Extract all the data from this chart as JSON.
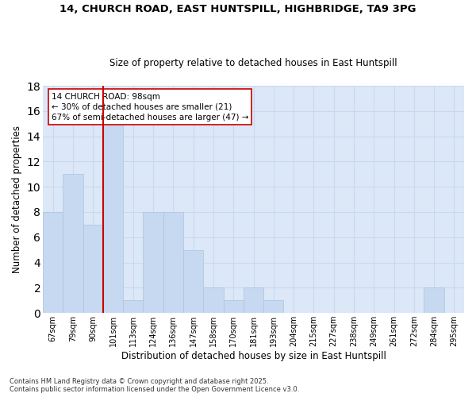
{
  "title_line1": "14, CHURCH ROAD, EAST HUNTSPILL, HIGHBRIDGE, TA9 3PG",
  "title_line2": "Size of property relative to detached houses in East Huntspill",
  "xlabel": "Distribution of detached houses by size in East Huntspill",
  "ylabel": "Number of detached properties",
  "categories": [
    "67sqm",
    "79sqm",
    "90sqm",
    "101sqm",
    "113sqm",
    "124sqm",
    "136sqm",
    "147sqm",
    "158sqm",
    "170sqm",
    "181sqm",
    "193sqm",
    "204sqm",
    "215sqm",
    "227sqm",
    "238sqm",
    "249sqm",
    "261sqm",
    "272sqm",
    "284sqm",
    "295sqm"
  ],
  "values": [
    8,
    11,
    7,
    15,
    1,
    8,
    8,
    5,
    2,
    1,
    2,
    1,
    0,
    0,
    0,
    0,
    0,
    0,
    0,
    2,
    0
  ],
  "bar_color": "#c6d9f0",
  "bar_edge_color": "#aac4e0",
  "red_line_color": "#cc0000",
  "annotation_text": "14 CHURCH ROAD: 98sqm\n← 30% of detached houses are smaller (21)\n67% of semi-detached houses are larger (47) →",
  "annotation_box_color": "#ffffff",
  "annotation_box_edge": "#cc0000",
  "ylim": [
    0,
    18
  ],
  "yticks": [
    0,
    2,
    4,
    6,
    8,
    10,
    12,
    14,
    16,
    18
  ],
  "grid_color": "#c8d8ee",
  "bg_color": "#dce8f8",
  "fig_bg_color": "#ffffff",
  "footer_text": "Contains HM Land Registry data © Crown copyright and database right 2025.\nContains public sector information licensed under the Open Government Licence v3.0."
}
